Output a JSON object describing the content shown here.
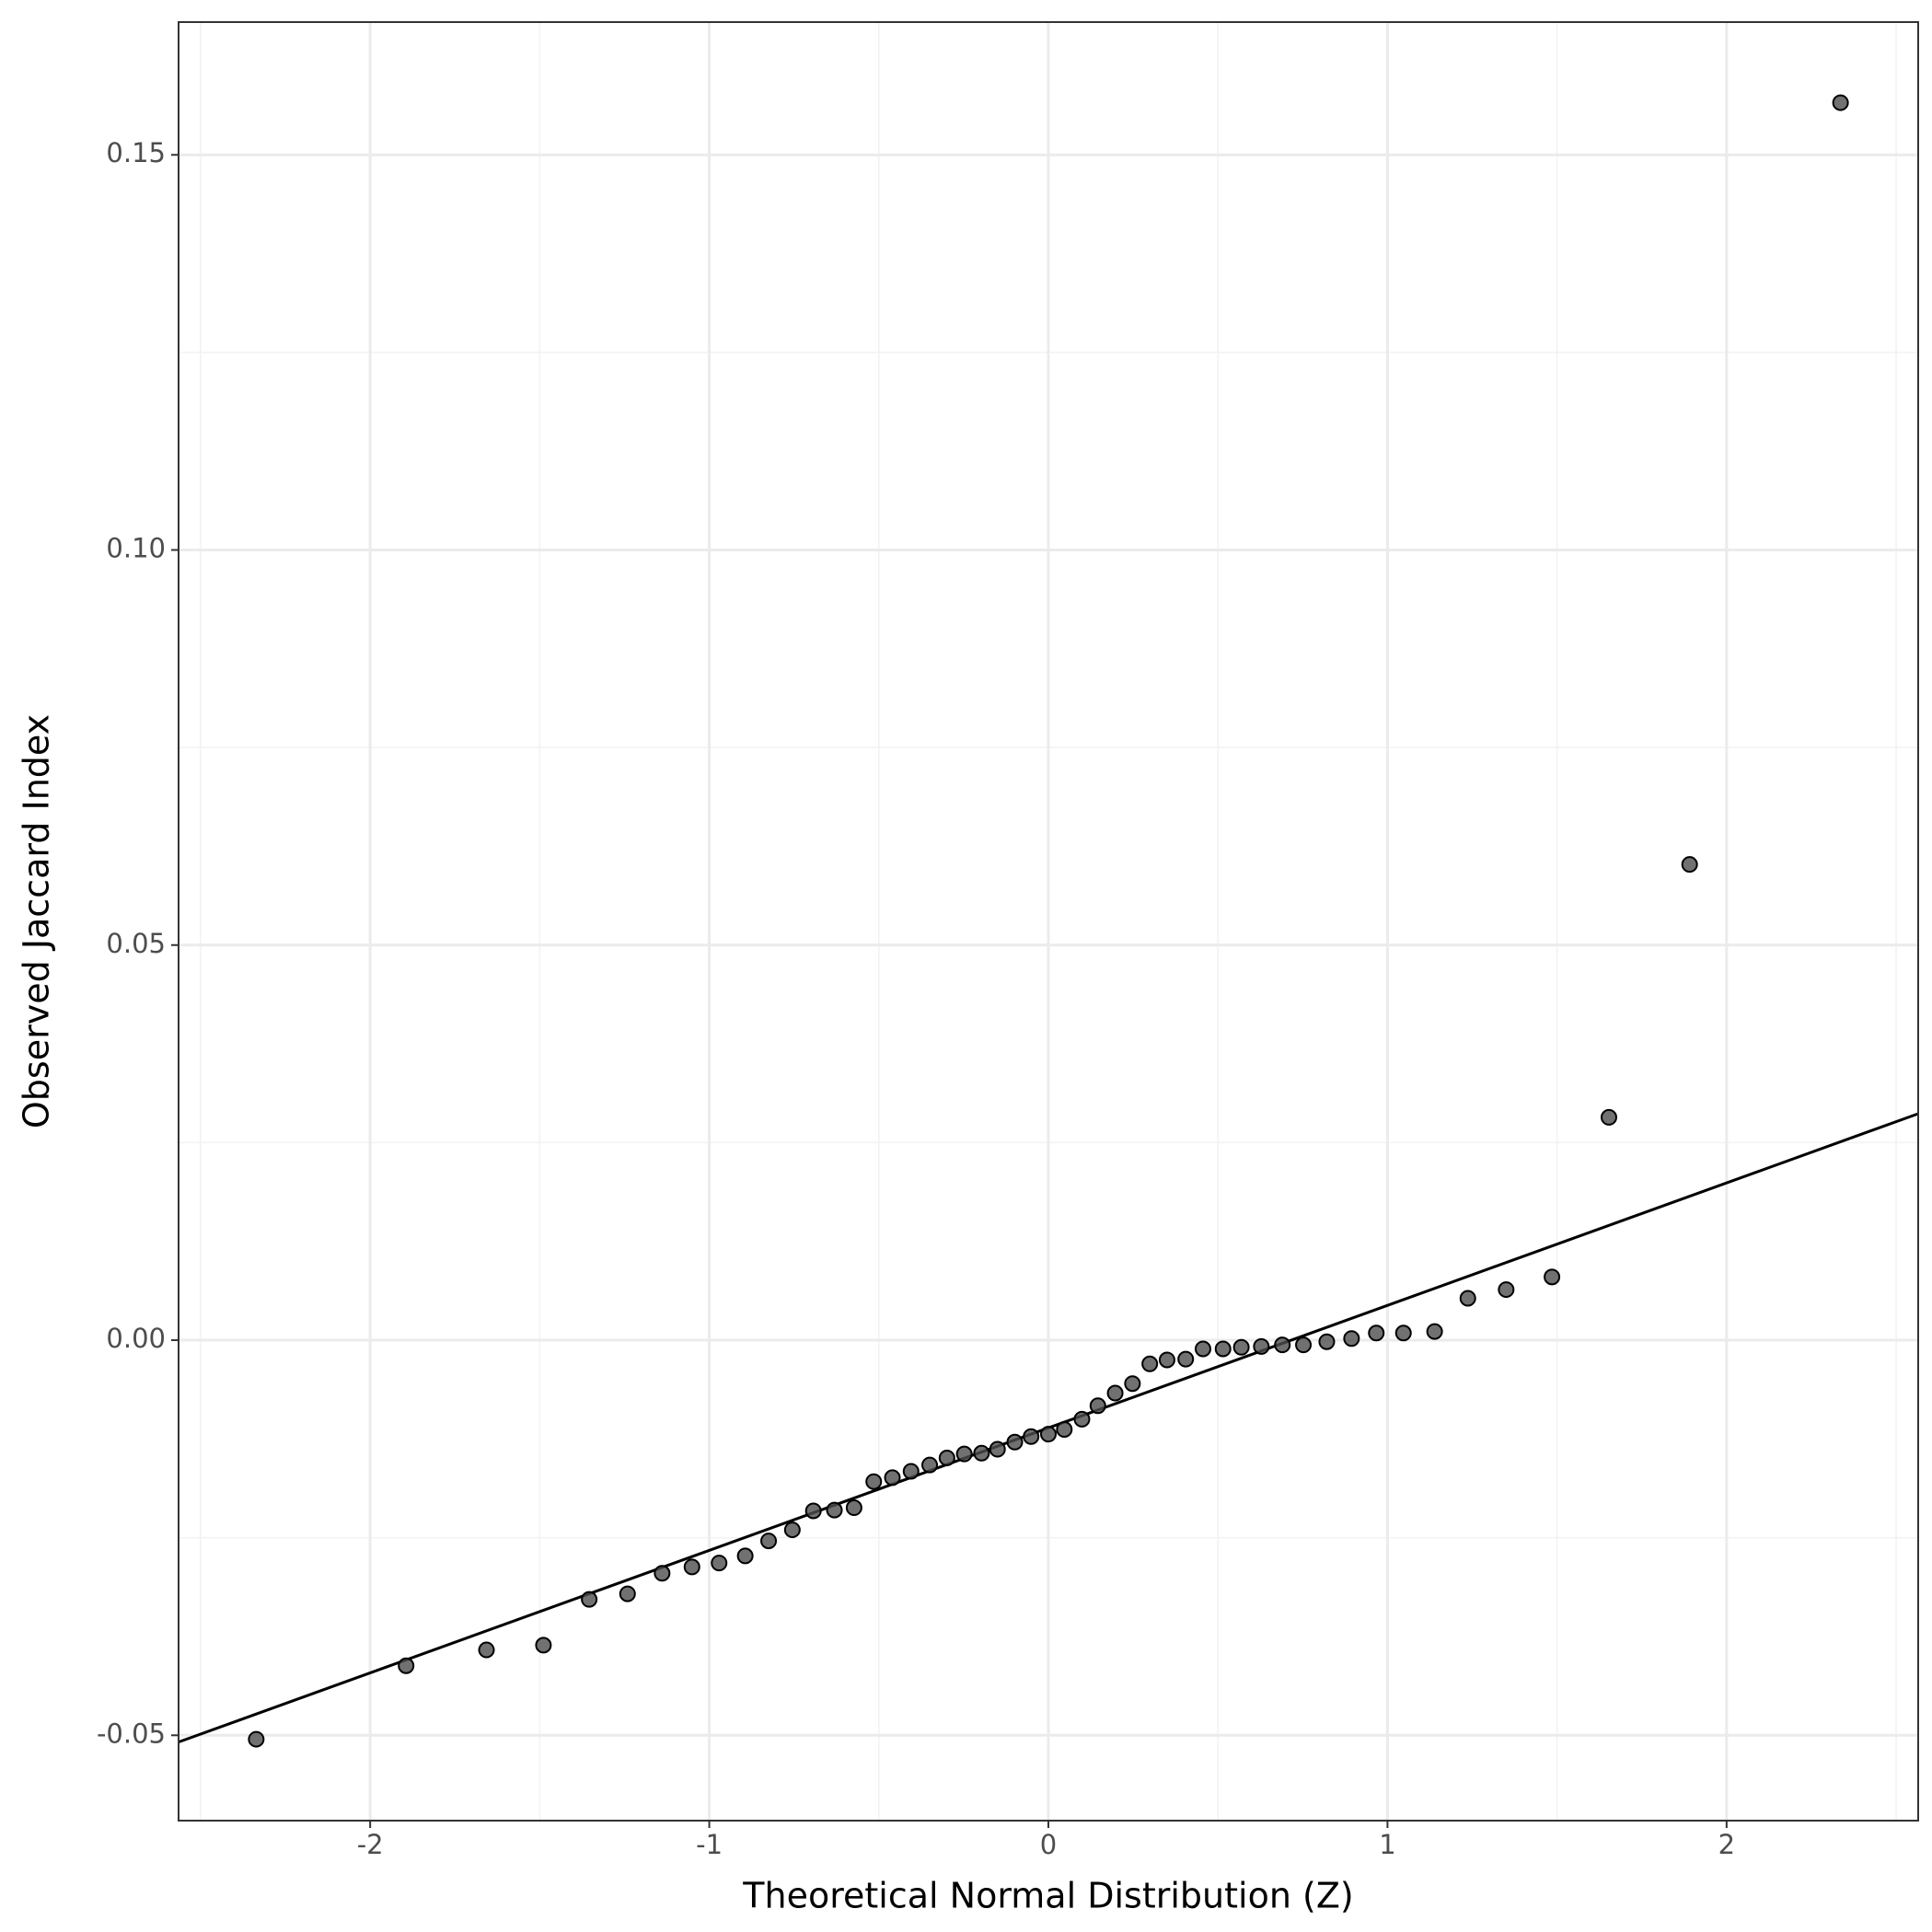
{
  "chart_data": {
    "type": "scatter",
    "xlabel": "Theoretical Normal Distribution (Z)",
    "ylabel": "Observed Jaccard Index",
    "x": [
      -2.336,
      -1.894,
      -1.657,
      -1.489,
      -1.354,
      -1.241,
      -1.139,
      -1.051,
      -0.971,
      -0.894,
      -0.825,
      -0.755,
      -0.693,
      -0.631,
      -0.573,
      -0.515,
      -0.46,
      -0.405,
      -0.35,
      -0.299,
      -0.248,
      -0.197,
      -0.15,
      -0.099,
      -0.051,
      0,
      0.047,
      0.099,
      0.146,
      0.197,
      0.248,
      0.299,
      0.35,
      0.405,
      0.456,
      0.515,
      0.569,
      0.628,
      0.69,
      0.752,
      0.821,
      0.894,
      0.967,
      1.047,
      1.139,
      1.237,
      1.35,
      1.485,
      1.653,
      1.891,
      2.336
    ],
    "values": [
      -0.0505,
      -0.0412,
      -0.0392,
      -0.0386,
      -0.0328,
      -0.0321,
      -0.0295,
      -0.0287,
      -0.0282,
      -0.0273,
      -0.0254,
      -0.024,
      -0.0216,
      -0.0215,
      -0.0212,
      -0.0179,
      -0.0174,
      -0.0166,
      -0.0158,
      -0.0149,
      -0.0144,
      -0.0143,
      -0.0138,
      -0.0129,
      -0.0122,
      -0.0119,
      -0.0113,
      -0.01,
      -0.0083,
      -0.0067,
      -0.0055,
      -0.003,
      -0.0025,
      -0.0024,
      -0.0011,
      -0.0011,
      -0.0009,
      -0.0008,
      -0.0006,
      -0.0006,
      -0.0002,
      0.0002,
      0.0009,
      0.0009,
      0.0011,
      0.0053,
      0.0064,
      0.008,
      0.0282,
      0.0602,
      0.1566
    ],
    "color": "#4d4d4d",
    "reference_line": {
      "intercept": -0.0111,
      "slope": 0.0155,
      "color": "#000000"
    },
    "xlim": [
      -2.565,
      2.565
    ],
    "xticks": [
      -2,
      -1,
      0,
      1,
      2
    ],
    "ylim": [
      -0.0608,
      0.1668
    ],
    "yticks": [
      {
        "value": -0.05,
        "label": "-0.05"
      },
      {
        "value": 0,
        "label": "0.00"
      },
      {
        "value": 0.05,
        "label": "0.05"
      },
      {
        "value": 0.1,
        "label": "0.10"
      },
      {
        "value": 0.15,
        "label": "0.15"
      }
    ],
    "grid": true
  }
}
